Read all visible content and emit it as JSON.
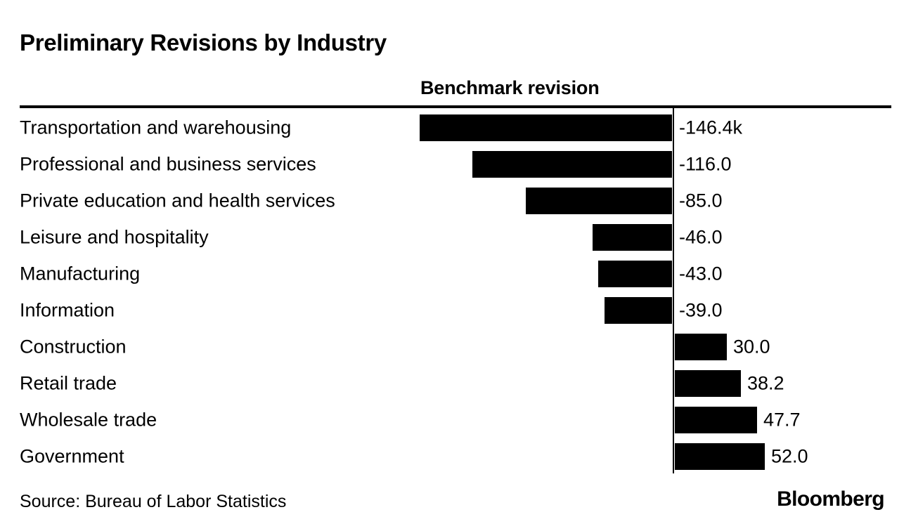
{
  "header": {
    "title": "Preliminary Revisions by Industry"
  },
  "chart_data": {
    "type": "bar",
    "orientation": "horizontal",
    "title": "Preliminary Revisions by Industry",
    "column_header": "Benchmark revision",
    "categories": [
      "Transportation and warehousing",
      "Professional and business services",
      "Private education and health services",
      "Leisure and hospitality",
      "Manufacturing",
      "Information",
      "Construction",
      "Retail trade",
      "Wholesale trade",
      "Government"
    ],
    "values": [
      -146.4,
      -116.0,
      -85.0,
      -46.0,
      -43.0,
      -39.0,
      30.0,
      38.2,
      47.7,
      52.0
    ],
    "value_labels": [
      "-146.4k",
      "-116.0",
      "-85.0",
      "-46.0",
      "-43.0",
      "-39.0",
      "30.0",
      "38.2",
      "47.7",
      "52.0"
    ],
    "unit": "thousands of jobs (k)",
    "xlim": [
      -146.4,
      52.0
    ],
    "zero_axis_line": true,
    "grid": false,
    "legend": "none",
    "bar_color": "#000000"
  },
  "footer": {
    "source": "Source: Bureau of Labor Statistics",
    "brand": "Bloomberg"
  },
  "colors": {
    "background": "#ffffff",
    "bar": "#000000",
    "text": "#000000",
    "rule": "#000000"
  }
}
